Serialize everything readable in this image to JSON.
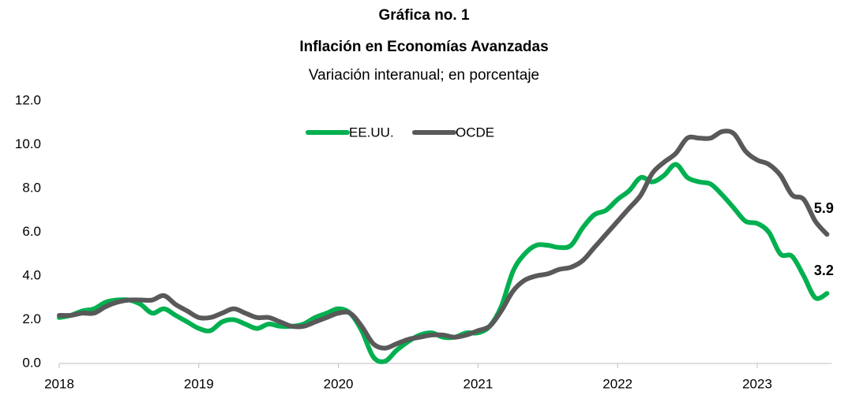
{
  "chart_data": {
    "type": "line",
    "title": "Gráfica no. 1",
    "subtitle": "Inflación en Economías Avanzadas",
    "note": "Variación interanual; en porcentaje",
    "categories": [
      "2018",
      null,
      null,
      null,
      null,
      null,
      null,
      null,
      null,
      null,
      null,
      null,
      "2019",
      null,
      null,
      null,
      null,
      null,
      null,
      null,
      null,
      null,
      null,
      null,
      "2020",
      null,
      null,
      null,
      null,
      null,
      null,
      null,
      null,
      null,
      null,
      null,
      "2021",
      null,
      null,
      null,
      null,
      null,
      null,
      null,
      null,
      null,
      null,
      null,
      "2022",
      null,
      null,
      null,
      null,
      null,
      null,
      null,
      null,
      null,
      null,
      null,
      "2023",
      null,
      null,
      null,
      null,
      null,
      null
    ],
    "series": [
      {
        "name": "EE.UU.",
        "color": "#00b050",
        "values": [
          2.1,
          2.2,
          2.4,
          2.5,
          2.8,
          2.9,
          2.9,
          2.7,
          2.3,
          2.5,
          2.2,
          1.9,
          1.6,
          1.5,
          1.9,
          2.0,
          1.8,
          1.6,
          1.8,
          1.7,
          1.7,
          1.8,
          2.1,
          2.3,
          2.5,
          2.3,
          1.5,
          0.3,
          0.1,
          0.6,
          1.0,
          1.3,
          1.4,
          1.2,
          1.2,
          1.4,
          1.4,
          1.7,
          2.6,
          4.2,
          5.0,
          5.4,
          5.4,
          5.3,
          5.4,
          6.2,
          6.8,
          7.0,
          7.5,
          7.9,
          8.5,
          8.3,
          8.6,
          9.1,
          8.5,
          8.3,
          8.2,
          7.7,
          7.1,
          6.5,
          6.4,
          6.0,
          5.0,
          4.9,
          4.0,
          3.0,
          3.2
        ]
      },
      {
        "name": "OCDE",
        "color": "#595959",
        "values": [
          2.2,
          2.2,
          2.3,
          2.3,
          2.6,
          2.8,
          2.9,
          2.9,
          2.9,
          3.1,
          2.7,
          2.4,
          2.1,
          2.1,
          2.3,
          2.5,
          2.3,
          2.1,
          2.1,
          1.9,
          1.7,
          1.7,
          1.9,
          2.1,
          2.3,
          2.3,
          1.7,
          0.9,
          0.7,
          0.9,
          1.1,
          1.2,
          1.3,
          1.3,
          1.2,
          1.3,
          1.5,
          1.7,
          2.4,
          3.3,
          3.8,
          4.0,
          4.1,
          4.3,
          4.4,
          4.7,
          5.3,
          5.9,
          6.5,
          7.1,
          7.7,
          8.7,
          9.2,
          9.6,
          10.3,
          10.3,
          10.3,
          10.6,
          10.5,
          9.7,
          9.3,
          9.1,
          8.6,
          7.7,
          7.5,
          6.5,
          5.9
        ]
      }
    ],
    "ylim": [
      0,
      12
    ],
    "yticks": [
      {
        "value": 0,
        "label": "0.0"
      },
      {
        "value": 2,
        "label": "2.0"
      },
      {
        "value": 4,
        "label": "4.0"
      },
      {
        "value": 6,
        "label": "6.0"
      },
      {
        "value": 8,
        "label": "8.0"
      },
      {
        "value": 10,
        "label": "10.0"
      },
      {
        "value": 12,
        "label": "12.0"
      }
    ],
    "grid": false,
    "legend": "top"
  }
}
